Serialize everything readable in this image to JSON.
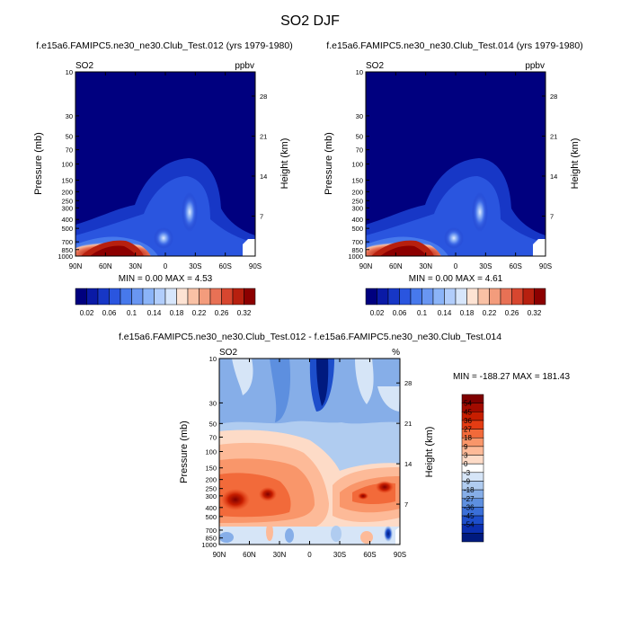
{
  "figure": {
    "title": "SO2 DJF"
  },
  "panels": [
    {
      "title": "f.e15a6.FAMIPC5.ne30_ne30.Club_Test.012 (yrs 1979-1980)",
      "variable": "SO2",
      "units": "ppbv",
      "stats": "MIN =   0.00  MAX =   4.53"
    },
    {
      "title": "f.e15a6.FAMIPC5.ne30_ne30.Club_Test.014 (yrs 1979-1980)",
      "variable": "SO2",
      "units": "ppbv",
      "stats": "MIN =   0.00  MAX =   4.61"
    },
    {
      "title": "f.e15a6.FAMIPC5.ne30_ne30.Club_Test.012 - f.e15a6.FAMIPC5.ne30_ne30.Club_Test.014",
      "variable": "SO2",
      "units": "%",
      "stats": "MIN = -188.27  MAX = 181.43"
    }
  ],
  "chart_data": [
    {
      "type": "heatmap",
      "title": "f.e15a6.FAMIPC5.ne30_ne30.Club_Test.012 (yrs 1979-1980)",
      "variable": "SO2",
      "units": "ppbv",
      "ylabel": "Pressure (mb)",
      "ylabel_right": "Height (km)",
      "x_ticks": [
        "90N",
        "60N",
        "30N",
        "0",
        "30S",
        "60S",
        "90S"
      ],
      "y_ticks": [
        "10",
        "30",
        "50",
        "70",
        "100",
        "150",
        "200",
        "250",
        "300",
        "400",
        "500",
        "700",
        "850",
        "1000"
      ],
      "y_ticks_right": [
        "28",
        "21",
        "14",
        "7"
      ],
      "scale": "log-pressure",
      "min": 0.0,
      "max": 4.53,
      "colorbar_levels": [
        "0.02",
        "0.06",
        "0.1",
        "0.14",
        "0.18",
        "0.22",
        "0.26",
        "0.32"
      ]
    },
    {
      "type": "heatmap",
      "title": "f.e15a6.FAMIPC5.ne30_ne30.Club_Test.014 (yrs 1979-1980)",
      "variable": "SO2",
      "units": "ppbv",
      "ylabel": "Pressure (mb)",
      "ylabel_right": "Height (km)",
      "x_ticks": [
        "90N",
        "60N",
        "30N",
        "0",
        "30S",
        "60S",
        "90S"
      ],
      "y_ticks": [
        "10",
        "30",
        "50",
        "70",
        "100",
        "150",
        "200",
        "250",
        "300",
        "400",
        "500",
        "700",
        "850",
        "1000"
      ],
      "y_ticks_right": [
        "28",
        "21",
        "14",
        "7"
      ],
      "scale": "log-pressure",
      "min": 0.0,
      "max": 4.61,
      "colorbar_levels": [
        "0.02",
        "0.06",
        "0.1",
        "0.14",
        "0.18",
        "0.22",
        "0.26",
        "0.32"
      ]
    },
    {
      "type": "heatmap",
      "title": "f.e15a6.FAMIPC5.ne30_ne30.Club_Test.012 - f.e15a6.FAMIPC5.ne30_ne30.Club_Test.014",
      "variable": "SO2",
      "units": "%",
      "ylabel": "Pressure (mb)",
      "ylabel_right": "Height (km)",
      "x_ticks": [
        "90N",
        "60N",
        "30N",
        "0",
        "30S",
        "60S",
        "90S"
      ],
      "y_ticks": [
        "10",
        "30",
        "50",
        "70",
        "100",
        "150",
        "200",
        "250",
        "300",
        "400",
        "500",
        "700",
        "850",
        "1000"
      ],
      "y_ticks_right": [
        "28",
        "21",
        "14",
        "7"
      ],
      "scale": "log-pressure",
      "min": -188.27,
      "max": 181.43,
      "colorbar_levels": [
        "54",
        "45",
        "36",
        "27",
        "18",
        "9",
        "3",
        "0",
        "-3",
        "-9",
        "-18",
        "-27",
        "-36",
        "-45",
        "-54"
      ]
    }
  ],
  "colors": {
    "seq": [
      "#00007f",
      "#0a1aa6",
      "#1737c6",
      "#2a55df",
      "#4779ec",
      "#6996f2",
      "#8bb4f8",
      "#b1cdfb",
      "#d7e6fb",
      "#fde3d3",
      "#f9c1a5",
      "#f39c7c",
      "#e87155",
      "#d7462f",
      "#b7200f",
      "#8c0000"
    ],
    "div": [
      "#7f0000",
      "#a30b00",
      "#c71e00",
      "#e43c13",
      "#f26a3a",
      "#f9966a",
      "#fdba98",
      "#fddbc7",
      "#ffffff",
      "#d6e5f7",
      "#b0ccf0",
      "#86aee8",
      "#5d8fdf",
      "#3a6fd8",
      "#1d4ecb",
      "#0b2fb0",
      "#001a7f"
    ]
  }
}
